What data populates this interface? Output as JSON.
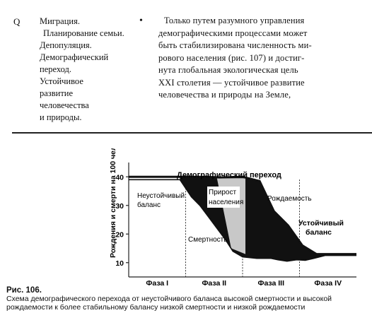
{
  "sidebar": {
    "marker": "Q",
    "items": [
      "Миграция.",
      "Планирование семьи.",
      "Депопуляция.",
      "Демографический",
      "переход.",
      "Устойчивое",
      "развитие",
      "человечества",
      "и природы."
    ]
  },
  "main": {
    "bullet": "•",
    "lines": [
      "Только путем разумного управления",
      "демографическими процессами может",
      "быть стабилизирована численность ми-",
      "рового населения (рис. 107) и достиг-",
      "нута глобальная экологическая цель",
      "XXI столетия — устойчивое развитие",
      "человечества и природы на Земле,"
    ]
  },
  "figure": {
    "number": "Рис. 106.",
    "caption": "Схема демографического перехода от неустойчивого баланса высокой смертности и высокой рождаемости к более стабильному балансу низкой смертности и низкой рождаемости",
    "chart_data": {
      "type": "line",
      "title": "Демографический переход",
      "ylabel": "Рождения и смерти на 100 чел.",
      "yticks": [
        10,
        20,
        30,
        40
      ],
      "ylim": [
        5,
        45
      ],
      "phases": [
        "Фаза I",
        "Фаза II",
        "Фаза III",
        "Фаза IV"
      ],
      "series": [
        {
          "name": "Рождаемость",
          "x": [
            0,
            0.9,
            1.3,
            1.6,
            2.0,
            2.3,
            2.55,
            2.8,
            3.05,
            3.3,
            3.45,
            4.0
          ],
          "y": [
            40,
            40,
            40,
            39.8,
            40,
            38.5,
            28,
            23,
            16,
            13,
            13,
            13
          ]
        },
        {
          "name": "Смертность",
          "x": [
            0,
            0.9,
            1.0,
            1.1,
            1.25,
            1.4,
            1.55,
            1.7,
            1.83,
            2.0,
            2.25,
            2.5,
            2.62,
            2.78,
            2.95,
            3.1,
            3.25,
            3.45,
            4.0
          ],
          "y": [
            39,
            39,
            36,
            33,
            30,
            26,
            22,
            18,
            14,
            12,
            11.5,
            11.5,
            11,
            10.5,
            11,
            10.8,
            11.5,
            12.5,
            12.5
          ]
        }
      ],
      "annotations": [
        "Неустойчивый баланс",
        "Прирост населения",
        "Смертность",
        "Рождаемость",
        "Устойчивый баланс"
      ]
    }
  }
}
